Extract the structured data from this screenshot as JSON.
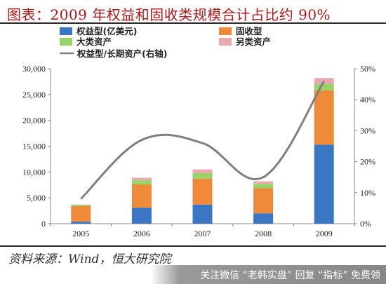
{
  "page": {
    "title": "图表：2009 年权益和固收类规模合计占比约 90%",
    "source": "资料来源：Wind，恒大研究院",
    "watermark": "关注微信 “老韩实盘” 回复 “指标” 免费领"
  },
  "colors": {
    "equity": "#3b76c4",
    "fixed_income": "#f08a3b",
    "macro": "#96d46a",
    "alternative": "#e9a9ae",
    "line": "#7f7f7f",
    "title": "#b01818"
  },
  "chart_data": {
    "type": "bar",
    "stacked": true,
    "categories": [
      "2005",
      "2006",
      "2007",
      "2008",
      "2009"
    ],
    "series": [
      {
        "key": "equity",
        "name": "权益型(亿美元)",
        "values": [
          400,
          3100,
          3700,
          2000,
          15300
        ]
      },
      {
        "key": "fixed_income",
        "name": "固收型",
        "values": [
          3000,
          4500,
          5000,
          4900,
          10500
        ]
      },
      {
        "key": "macro",
        "name": "大类资产",
        "values": [
          200,
          800,
          1100,
          800,
          1300
        ]
      },
      {
        "key": "alternative",
        "name": "另类资产",
        "values": [
          100,
          500,
          700,
          500,
          1100
        ]
      }
    ],
    "line_series": {
      "name": "权益型/长期资产(右轴)",
      "axis": "right",
      "values": [
        8,
        27,
        26,
        15,
        46
      ]
    },
    "y_left": {
      "min": 0,
      "max": 30000,
      "ticks": [
        "0",
        "5,000",
        "10,000",
        "15,000",
        "20,000",
        "25,000",
        "30,000"
      ]
    },
    "y_right": {
      "min": 0,
      "max": 50,
      "ticks": [
        "0%",
        "10%",
        "20%",
        "30%",
        "40%",
        "50%"
      ]
    },
    "legend": {
      "position": "top"
    },
    "grid": false
  }
}
